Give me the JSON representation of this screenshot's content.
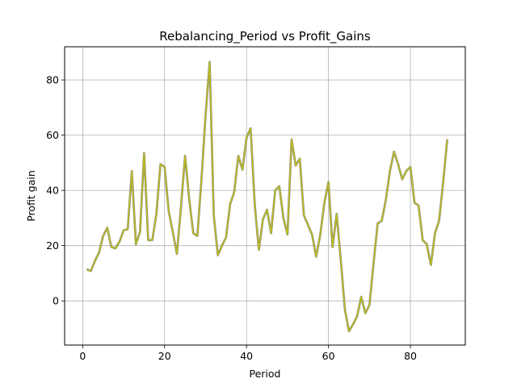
{
  "chart_data": {
    "type": "line",
    "title": "Rebalancing_Period vs Profit_Gains",
    "xlabel": "Period",
    "ylabel": "Profit gain",
    "xlim": [
      -4.4,
      93.4
    ],
    "ylim": [
      -16,
      92
    ],
    "x_ticks": [
      0,
      20,
      40,
      60,
      80
    ],
    "y_ticks": [
      0,
      20,
      40,
      60,
      80
    ],
    "grid": true,
    "line_color": "#bcbd22",
    "line_edge_color": "#7f7f7f",
    "series": [
      {
        "x": [
          1,
          2,
          3,
          4,
          5,
          6,
          7,
          8,
          9,
          10,
          11,
          12,
          13,
          14,
          15,
          16,
          17,
          18,
          19,
          20,
          21,
          22,
          23,
          24,
          25,
          26,
          27,
          28,
          29,
          30,
          31,
          32,
          33,
          34,
          35,
          36,
          37,
          38,
          39,
          40,
          41,
          42,
          43,
          44,
          45,
          46,
          47,
          48,
          49,
          50,
          51,
          52,
          53,
          54,
          55,
          56,
          57,
          58,
          59,
          60,
          61,
          62,
          63,
          64,
          65,
          66,
          67,
          68,
          69,
          70,
          71,
          72,
          73,
          74,
          75,
          76,
          77,
          78,
          79,
          80,
          81,
          82,
          83,
          84,
          85,
          86,
          87,
          88,
          89
        ],
        "values": [
          11.5,
          10.8,
          14.5,
          17.5,
          23.5,
          26.5,
          19.5,
          19,
          21.5,
          25.5,
          26,
          47,
          20.5,
          25,
          53.5,
          22,
          22,
          31.5,
          49.5,
          48.5,
          32.5,
          25,
          17,
          34,
          52.5,
          37,
          24.5,
          23.5,
          44,
          67,
          86.5,
          31,
          16.5,
          20,
          23,
          35,
          39.5,
          52.5,
          47.5,
          59,
          62.5,
          35,
          18.5,
          29.5,
          33,
          24.5,
          40,
          41.5,
          30,
          24,
          58.5,
          49,
          51.5,
          31,
          27.5,
          24,
          16,
          24,
          35.5,
          43,
          19.5,
          31.5,
          15,
          -3,
          -11,
          -8.5,
          -5.5,
          1.5,
          -4.5,
          -1.5,
          13.5,
          28,
          29,
          36.5,
          47,
          54,
          49.5,
          44,
          47,
          48.5,
          35.5,
          34.5,
          22,
          20.5,
          13,
          24.5,
          29,
          43,
          58.5
        ]
      }
    ]
  }
}
